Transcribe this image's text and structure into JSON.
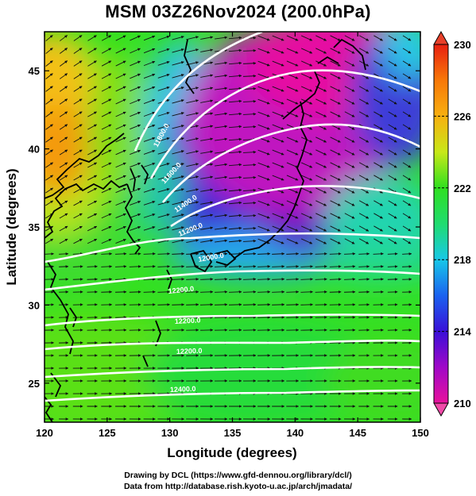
{
  "title": "MSM 03Z26Nov2024 (200.0hPa)",
  "credits": {
    "line1": "Drawing by DCL (https://www.gfd-dennou.org/library/dcl/)",
    "line2": "Data from http://database.rish.kyoto-u.ac.jp/arch/jmadata/"
  },
  "map": {
    "xlabel": "Longitude (degrees)",
    "ylabel": "Latitude  (degrees)",
    "xlim": [
      120,
      150
    ],
    "ylim": [
      22.5,
      47.5
    ],
    "xticks": [
      "120",
      "125",
      "130",
      "135",
      "140",
      "145",
      "150"
    ],
    "yticks": [
      "25",
      "30",
      "35",
      "40",
      "45"
    ],
    "grid": false,
    "shaded_field": "temperature (K)",
    "contour_field": "geopotential height (m)",
    "vector_field": "wind",
    "contour_labels": [
      "11800.0",
      "11600.0",
      "11400.0",
      "11200.0",
      "12000.0",
      "12200.0",
      "12200.0",
      "12400.0"
    ]
  },
  "colorbar": {
    "ticks": [
      "230",
      "226",
      "222",
      "218",
      "214",
      "210"
    ],
    "range": [
      210,
      230
    ],
    "orientation": "vertical",
    "placement": "right",
    "colors": [
      "#e8129c",
      "#a008c8",
      "#3a10d8",
      "#1a62f0",
      "#18c8e8",
      "#20dc70",
      "#30e020",
      "#c8e818",
      "#f8b010",
      "#f87808",
      "#e82010"
    ]
  }
}
